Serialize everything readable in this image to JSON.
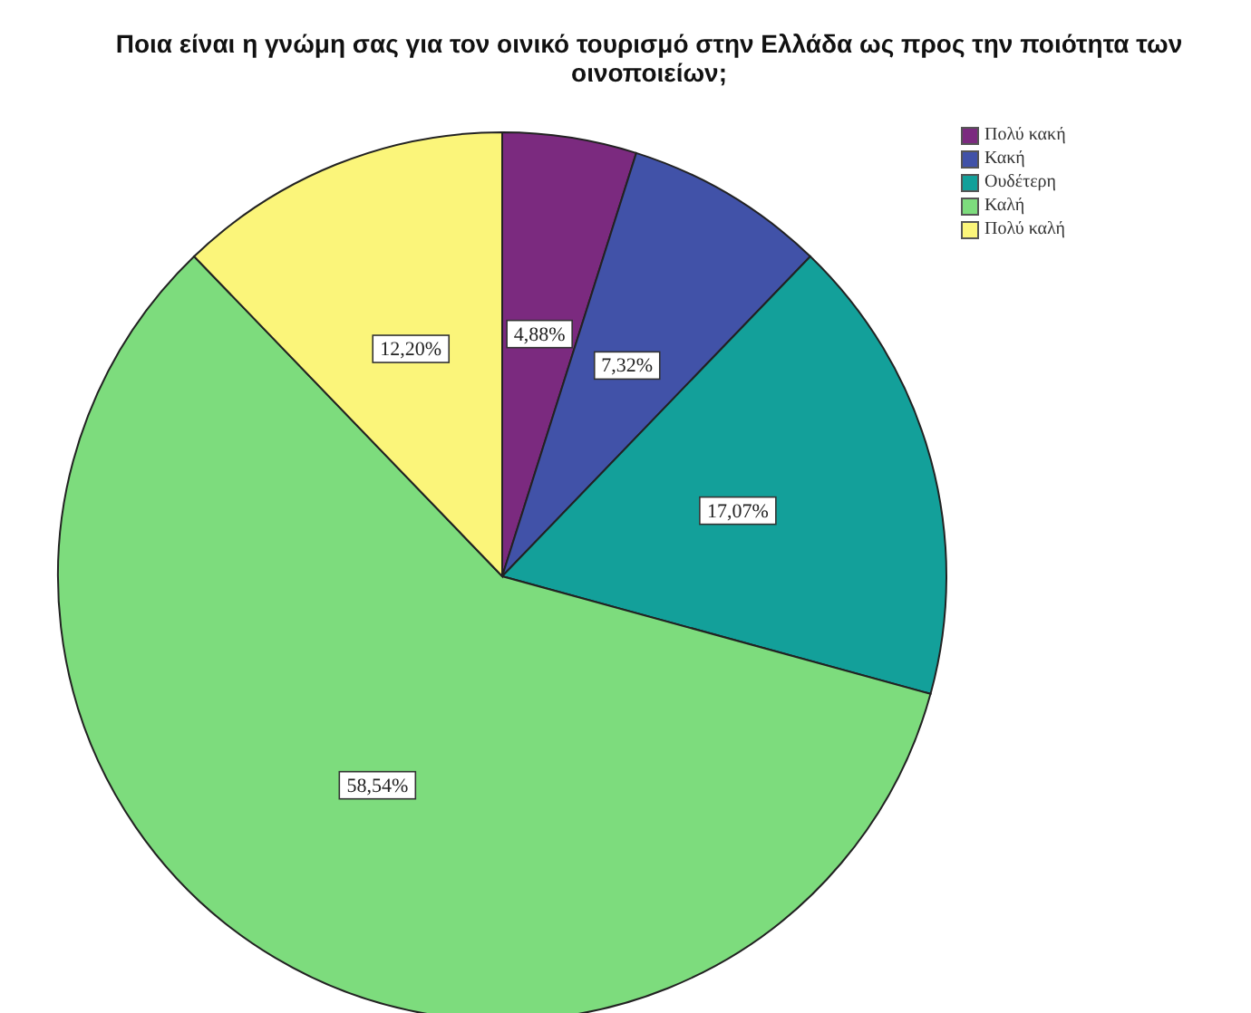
{
  "chart_data": {
    "type": "pie",
    "title": "Ποια είναι η γνώμη σας για τον οινικό τουρισμό στην Ελλάδα ως προς την ποιότητα των οινοποιείων;",
    "categories": [
      "Πολύ κακή",
      "Κακή",
      "Ουδέτερη",
      "Καλή",
      "Πολύ καλή"
    ],
    "values": [
      4.88,
      7.32,
      17.07,
      58.54,
      12.2
    ],
    "colors": [
      "#7b2a7f",
      "#4152a8",
      "#13a09a",
      "#7ddc7d",
      "#fbf57a"
    ],
    "value_labels": [
      "4,88%",
      "7,32%",
      "17,07%",
      "58,54%",
      "12,20%"
    ],
    "legend": "top right"
  }
}
